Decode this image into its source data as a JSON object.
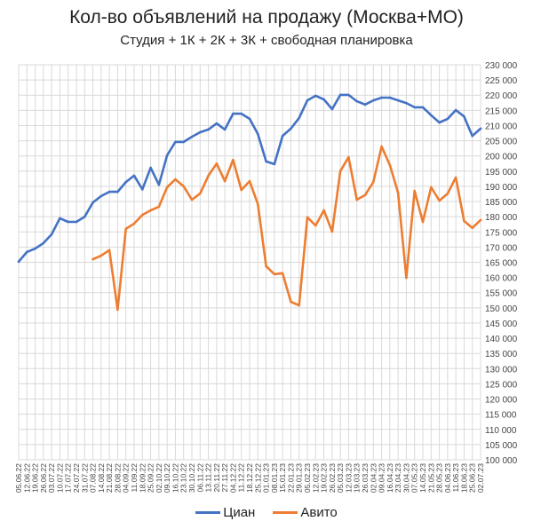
{
  "chart_data": {
    "type": "line",
    "title": "Кол-во объявлений на продажу (Москва+МО)",
    "subtitle": "Студия + 1К + 2К + 3К + свободная планировка",
    "ylim": [
      100000,
      230000
    ],
    "ytick_step": 5000,
    "yaxis_position": "right",
    "grid": true,
    "legend": "bottom",
    "categories": [
      "05.06.22",
      "12.06.22",
      "19.06.22",
      "26.06.22",
      "03.07.22",
      "10.07.22",
      "17.07.22",
      "24.07.22",
      "31.07.22",
      "07.08.22",
      "14.08.22",
      "21.08.22",
      "28.08.22",
      "04.09.22",
      "11.09.22",
      "18.09.22",
      "25.09.22",
      "02.10.22",
      "09.10.22",
      "16.10.22",
      "23.10.22",
      "30.10.22",
      "06.11.22",
      "13.11.22",
      "20.11.22",
      "27.11.22",
      "04.12.22",
      "11.12.22",
      "18.12.22",
      "25.12.22",
      "01.01.23",
      "08.01.23",
      "15.01.23",
      "22.01.23",
      "29.01.23",
      "05.02.23",
      "12.02.23",
      "19.02.23",
      "26.02.23",
      "05.03.23",
      "12.03.23",
      "19.03.23",
      "26.03.23",
      "02.04.23",
      "09.04.23",
      "16.04.23",
      "23.04.23",
      "30.04.23",
      "07.05.23",
      "14.05.23",
      "21.05.23",
      "28.05.23",
      "04.06.23",
      "11.06.23",
      "18.06.23",
      "25.06.23",
      "02.07.23"
    ],
    "yticks": [
      "100 000",
      "105 000",
      "110 000",
      "115 000",
      "120 000",
      "125 000",
      "130 000",
      "135 000",
      "140 000",
      "145 000",
      "150 000",
      "155 000",
      "160 000",
      "165 000",
      "170 000",
      "175 000",
      "180 000",
      "185 000",
      "190 000",
      "195 000",
      "200 000",
      "205 000",
      "210 000",
      "215 000",
      "220 000",
      "225 000",
      "230 000"
    ],
    "series": [
      {
        "name": "Циан",
        "color": "#4472C4",
        "values": [
          165200,
          168400,
          169500,
          171300,
          174200,
          179500,
          178300,
          178300,
          180000,
          184700,
          186800,
          188200,
          188200,
          191400,
          193500,
          189000,
          196100,
          190500,
          200200,
          204600,
          204600,
          206300,
          207800,
          208700,
          210700,
          208700,
          213900,
          213900,
          212200,
          207200,
          198200,
          197300,
          206600,
          209000,
          212500,
          218300,
          219800,
          218600,
          215400,
          220100,
          220100,
          218000,
          216900,
          218300,
          219200,
          219200,
          218300,
          217400,
          216000,
          216000,
          213400,
          211000,
          212200,
          215100,
          213000,
          206600,
          209000
        ]
      },
      {
        "name": "Авито",
        "color": "#ED7D31",
        "values": [
          null,
          null,
          null,
          null,
          null,
          null,
          null,
          null,
          null,
          166000,
          167200,
          169000,
          149400,
          176000,
          177700,
          180600,
          182100,
          183300,
          189700,
          192300,
          190000,
          185600,
          187600,
          193500,
          197500,
          191700,
          198700,
          188800,
          191700,
          184100,
          163700,
          161100,
          161400,
          152000,
          150800,
          179800,
          177100,
          182100,
          175100,
          195000,
          199600,
          185600,
          187100,
          191400,
          203100,
          197000,
          187900,
          159900,
          188500,
          178300,
          189700,
          185300,
          187600,
          192900,
          178600,
          176300,
          178900
        ]
      }
    ]
  }
}
